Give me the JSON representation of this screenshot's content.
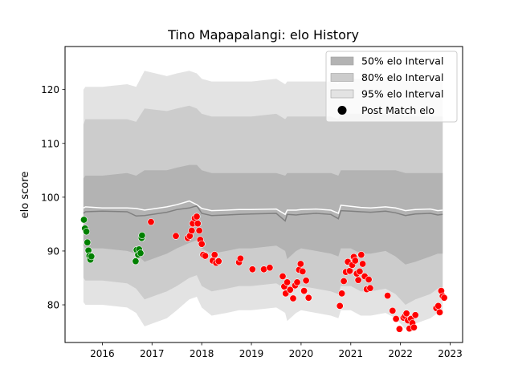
{
  "chart_data": {
    "type": "scatter",
    "title": "Tino Mapapalangi: elo History",
    "xlabel": "",
    "ylabel": "elo score",
    "xlim": [
      2015.25,
      2023.25
    ],
    "ylim": [
      73,
      128
    ],
    "x_ticks": [
      {
        "value": 2016,
        "label": "2016"
      },
      {
        "value": 2017,
        "label": "2017"
      },
      {
        "value": 2018,
        "label": "2018"
      },
      {
        "value": 2019,
        "label": "2019"
      },
      {
        "value": 2020,
        "label": "2020"
      },
      {
        "value": 2021,
        "label": "2021"
      },
      {
        "value": 2022,
        "label": "2022"
      },
      {
        "value": 2023,
        "label": "2023"
      }
    ],
    "y_ticks": [
      {
        "value": 80,
        "label": "80"
      },
      {
        "value": 90,
        "label": "90"
      },
      {
        "value": 100,
        "label": "100"
      },
      {
        "value": 110,
        "label": "110"
      },
      {
        "value": 120,
        "label": "120"
      }
    ],
    "grid": false,
    "legend_position": "top-right",
    "legend": [
      {
        "label": "50% elo Interval",
        "kind": "patch",
        "color": "#b3b3b3"
      },
      {
        "label": "80% elo Interval",
        "kind": "patch",
        "color": "#cccccc"
      },
      {
        "label": "95% elo Interval",
        "kind": "patch",
        "color": "#e3e3e3"
      },
      {
        "label": "Post Match elo",
        "kind": "marker",
        "color": "#000000"
      }
    ],
    "colors": {
      "band_95": "#e3e3e3",
      "band_80": "#cccccc",
      "band_50": "#b3b3b3",
      "mean_line": "#ffffff",
      "median_line": "#808080",
      "win_marker": "#008000",
      "loss_marker": "#ff0000",
      "marker_edge": "#ffffff"
    },
    "intervals": {
      "x": [
        2015.62,
        2015.66,
        2016.0,
        2016.5,
        2016.68,
        2016.85,
        2017.3,
        2017.5,
        2017.75,
        2017.9,
        2018.0,
        2018.2,
        2018.5,
        2018.75,
        2019.0,
        2019.5,
        2019.68,
        2019.72,
        2019.9,
        2020.0,
        2020.3,
        2020.6,
        2020.75,
        2020.8,
        2021.0,
        2021.2,
        2021.4,
        2021.7,
        2021.9,
        2022.1,
        2022.3,
        2022.6,
        2022.75,
        2022.85
      ],
      "p95_low": [
        80.5,
        80.0,
        80.0,
        79.5,
        78.5,
        76.0,
        77.5,
        79.0,
        81.0,
        81.5,
        79.5,
        78.0,
        78.5,
        79.0,
        79.0,
        79.5,
        78.5,
        77.0,
        78.5,
        79.0,
        78.5,
        78.0,
        77.5,
        79.0,
        79.0,
        78.0,
        78.0,
        78.5,
        77.5,
        75.5,
        76.5,
        77.5,
        78.5,
        78.5
      ],
      "p80_low": [
        85.0,
        84.5,
        84.5,
        84.0,
        83.0,
        81.0,
        82.5,
        83.5,
        85.0,
        85.5,
        83.5,
        82.5,
        83.0,
        83.5,
        83.5,
        84.0,
        83.0,
        81.5,
        83.0,
        83.5,
        83.0,
        82.5,
        82.0,
        83.5,
        83.5,
        82.5,
        82.5,
        83.0,
        82.0,
        80.0,
        81.0,
        82.0,
        83.0,
        83.0
      ],
      "p50_low": [
        91.0,
        90.5,
        90.5,
        90.0,
        89.5,
        88.0,
        89.5,
        90.5,
        91.5,
        92.0,
        90.5,
        89.5,
        90.0,
        90.5,
        90.5,
        91.0,
        90.0,
        88.5,
        90.0,
        90.5,
        90.0,
        89.5,
        89.0,
        90.5,
        90.5,
        89.5,
        89.5,
        90.0,
        89.0,
        87.5,
        88.0,
        89.0,
        89.5,
        89.5
      ],
      "median": [
        97.0,
        97.3,
        97.4,
        97.3,
        96.5,
        96.6,
        97.2,
        97.7,
        98.0,
        98.4,
        97.0,
        96.6,
        96.7,
        96.8,
        96.9,
        97.0,
        95.6,
        96.8,
        96.7,
        96.8,
        97.0,
        96.8,
        96.0,
        97.5,
        97.4,
        97.3,
        97.2,
        97.4,
        97.1,
        96.6,
        96.9,
        97.0,
        96.7,
        96.8
      ],
      "mean": [
        98.0,
        98.2,
        98.0,
        98.0,
        97.9,
        97.6,
        98.2,
        98.6,
        99.3,
        98.6,
        97.9,
        97.5,
        97.6,
        97.7,
        97.7,
        97.8,
        96.8,
        97.6,
        97.6,
        97.7,
        97.8,
        97.6,
        97.0,
        98.5,
        98.3,
        98.1,
        98.0,
        98.2,
        98.0,
        97.5,
        97.7,
        97.8,
        97.5,
        97.6
      ],
      "p50_high": [
        103.5,
        104.0,
        104.0,
        104.5,
        104.0,
        105.0,
        105.0,
        105.5,
        106.0,
        106.0,
        105.0,
        104.5,
        104.5,
        104.5,
        104.5,
        104.5,
        104.0,
        104.5,
        104.5,
        104.5,
        104.5,
        104.5,
        104.0,
        105.0,
        105.0,
        105.0,
        105.0,
        105.0,
        105.0,
        104.5,
        104.5,
        104.5,
        104.5,
        104.5
      ],
      "p80_high": [
        113.5,
        114.5,
        114.5,
        114.5,
        114.0,
        116.5,
        116.0,
        116.5,
        117.0,
        116.5,
        115.5,
        115.0,
        115.0,
        115.0,
        115.0,
        115.5,
        114.5,
        115.0,
        115.0,
        115.0,
        115.0,
        115.0,
        114.5,
        115.5,
        115.5,
        115.5,
        115.5,
        115.5,
        115.5,
        115.0,
        115.0,
        115.0,
        115.0,
        115.0
      ],
      "p95_high": [
        120.0,
        120.5,
        120.5,
        121.0,
        120.5,
        123.5,
        122.5,
        123.0,
        123.5,
        123.0,
        122.0,
        121.5,
        121.5,
        121.5,
        121.5,
        122.0,
        121.0,
        121.5,
        121.5,
        121.5,
        121.5,
        121.5,
        121.0,
        122.0,
        122.0,
        122.0,
        122.0,
        122.0,
        122.0,
        121.5,
        121.5,
        121.5,
        121.5,
        121.5
      ]
    },
    "series": [
      {
        "result": "win",
        "color": "#008000",
        "points": [
          [
            2015.63,
            95.8
          ],
          [
            2015.65,
            94.2
          ],
          [
            2015.68,
            93.6
          ],
          [
            2015.7,
            91.6
          ],
          [
            2015.72,
            90.1
          ],
          [
            2015.74,
            89.1
          ],
          [
            2015.76,
            88.4
          ],
          [
            2015.78,
            89.0
          ],
          [
            2016.67,
            88.1
          ],
          [
            2016.69,
            90.2
          ],
          [
            2016.72,
            89.3
          ],
          [
            2016.74,
            90.3
          ],
          [
            2016.77,
            89.6
          ],
          [
            2016.79,
            92.4
          ],
          [
            2016.8,
            92.9
          ]
        ]
      },
      {
        "result": "loss",
        "color": "#ff0000",
        "points": [
          [
            2016.98,
            95.4
          ],
          [
            2017.48,
            92.8
          ],
          [
            2017.72,
            92.4
          ],
          [
            2017.76,
            92.8
          ],
          [
            2017.8,
            93.8
          ],
          [
            2017.82,
            95.1
          ],
          [
            2017.86,
            96.1
          ],
          [
            2017.9,
            96.4
          ],
          [
            2017.92,
            95.1
          ],
          [
            2017.95,
            93.8
          ],
          [
            2017.97,
            92.1
          ],
          [
            2018.0,
            91.3
          ],
          [
            2018.03,
            89.3
          ],
          [
            2018.07,
            89.1
          ],
          [
            2018.22,
            88.2
          ],
          [
            2018.26,
            89.3
          ],
          [
            2018.29,
            87.8
          ],
          [
            2018.34,
            88.1
          ],
          [
            2018.75,
            87.9
          ],
          [
            2018.78,
            88.6
          ],
          [
            2019.02,
            86.6
          ],
          [
            2019.25,
            86.6
          ],
          [
            2019.37,
            86.9
          ],
          [
            2019.63,
            85.3
          ],
          [
            2019.66,
            83.4
          ],
          [
            2019.69,
            82.1
          ],
          [
            2019.72,
            84.2
          ],
          [
            2019.78,
            82.8
          ],
          [
            2019.84,
            81.2
          ],
          [
            2019.88,
            83.6
          ],
          [
            2019.92,
            84.2
          ],
          [
            2019.96,
            86.5
          ],
          [
            2019.99,
            87.6
          ],
          [
            2020.03,
            86.2
          ],
          [
            2020.06,
            82.6
          ],
          [
            2020.1,
            84.5
          ],
          [
            2020.15,
            81.3
          ],
          [
            2020.78,
            79.8
          ],
          [
            2020.82,
            82.1
          ],
          [
            2020.86,
            84.4
          ],
          [
            2020.9,
            86.1
          ],
          [
            2020.94,
            88.0
          ],
          [
            2020.98,
            86.3
          ],
          [
            2021.03,
            87.4
          ],
          [
            2021.06,
            88.9
          ],
          [
            2021.09,
            88.2
          ],
          [
            2021.12,
            85.8
          ],
          [
            2021.15,
            84.6
          ],
          [
            2021.18,
            86.2
          ],
          [
            2021.21,
            89.3
          ],
          [
            2021.24,
            87.6
          ],
          [
            2021.28,
            85.3
          ],
          [
            2021.32,
            82.9
          ],
          [
            2021.36,
            84.7
          ],
          [
            2021.39,
            83.1
          ],
          [
            2021.74,
            81.7
          ],
          [
            2021.84,
            78.9
          ],
          [
            2021.91,
            77.4
          ],
          [
            2021.98,
            75.5
          ],
          [
            2022.06,
            77.6
          ],
          [
            2022.09,
            77.9
          ],
          [
            2022.12,
            78.4
          ],
          [
            2022.15,
            77.1
          ],
          [
            2022.18,
            75.6
          ],
          [
            2022.21,
            77.4
          ],
          [
            2022.24,
            76.6
          ],
          [
            2022.27,
            75.8
          ],
          [
            2022.3,
            78.1
          ],
          [
            2022.72,
            79.4
          ],
          [
            2022.76,
            79.8
          ],
          [
            2022.79,
            78.6
          ],
          [
            2022.82,
            82.6
          ],
          [
            2022.85,
            81.6
          ],
          [
            2022.88,
            81.3
          ]
        ]
      }
    ]
  }
}
